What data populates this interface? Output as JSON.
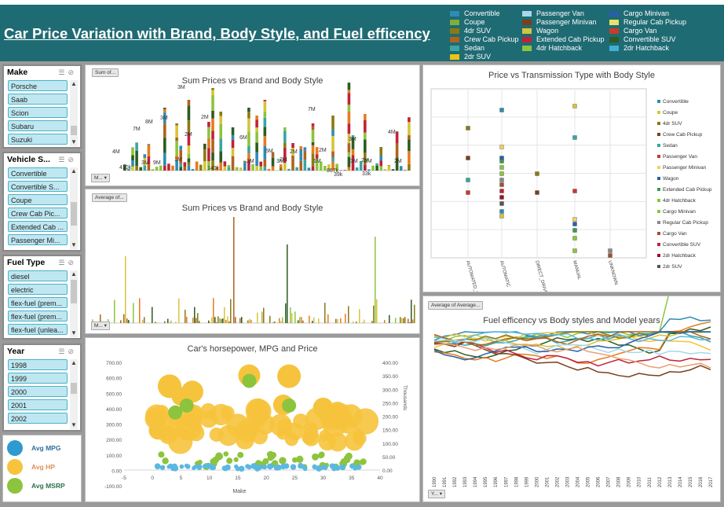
{
  "header": {
    "title": "Car Price Variation with Brand, Body Style, and Fuel efficency",
    "legend": [
      {
        "label": "Convertible",
        "color": "#2e8bb5"
      },
      {
        "label": "Coupe",
        "color": "#7fae3c"
      },
      {
        "label": "4dr SUV",
        "color": "#8a7a14"
      },
      {
        "label": "Crew Cab Pickup",
        "color": "#b0621e"
      },
      {
        "label": "Sedan",
        "color": "#3aa5a3"
      },
      {
        "label": "2dr SUV",
        "color": "#e8c515"
      },
      {
        "label": "Passenger Van",
        "color": "#a6d8e8"
      },
      {
        "label": "Passenger Minivan",
        "color": "#7a3f1c"
      },
      {
        "label": "Wagon",
        "color": "#d6c43a"
      },
      {
        "label": "Extended Cab Pickup",
        "color": "#c0223b"
      },
      {
        "label": "4dr Hatchback",
        "color": "#8cc43e"
      },
      {
        "label": "Cargo Minivan",
        "color": "#2a5fa8"
      },
      {
        "label": "Regular Cab Pickup",
        "color": "#e8e06a"
      },
      {
        "label": "Cargo Van",
        "color": "#c83a2a"
      },
      {
        "label": "Convertible SUV",
        "color": "#2c5c22"
      },
      {
        "label": "2dr Hatchback",
        "color": "#3fb0d8"
      }
    ]
  },
  "slicers": {
    "make": {
      "title": "Make",
      "items": [
        "Porsche",
        "Saab",
        "Scion",
        "Subaru",
        "Suzuki"
      ]
    },
    "vehicle": {
      "title": "Vehicle S...",
      "items": [
        "Convertible",
        "Convertible S...",
        "Coupe",
        "Crew Cab Pic...",
        "Extended Cab ...",
        "Passenger Mi..."
      ]
    },
    "fuel": {
      "title": "Fuel Type",
      "items": [
        "diesel",
        "electric",
        "flex-fuel (prem...",
        "flex-fuel (prem...",
        "flex-fuel (unlea..."
      ]
    },
    "year": {
      "title": "Year",
      "items": [
        "1998",
        "1999",
        "2000",
        "2001",
        "2002"
      ]
    }
  },
  "avg_legend": [
    {
      "label": "Avg MPG",
      "color": "#2e9ad0",
      "text_color": "#2e6f9a"
    },
    {
      "label": "Avg HP",
      "color": "#f6c33c",
      "text_color": "#e08e5a"
    },
    {
      "label": "Avg MSRP",
      "color": "#8cc43e",
      "text_color": "#2e6f4a"
    }
  ],
  "buttons": {
    "sum_of": "Sum of...",
    "average_of": "Average of...",
    "m1": "M...",
    "m2": "M...",
    "average_of_average": "Average of Average...",
    "y": "Y..."
  },
  "chart1": {
    "title": "Sum Prices vs Brand and Body Style",
    "labels": [
      "4M",
      "410k",
      "7M",
      "3M",
      "8M",
      "9M",
      "3M",
      "3M",
      "1M",
      "2M",
      "140k",
      "2M",
      "6M",
      "2M",
      "5M",
      "3M",
      "7M",
      "2M",
      "2M",
      "2M",
      "1M",
      "867k",
      "39k",
      "3M",
      "2M",
      "4M",
      "3M",
      "2M",
      "33k",
      "2M"
    ]
  },
  "chart2": {
    "title": "Sum Prices vs Brand and Body Style"
  },
  "chart3": {
    "title": "Car's horsepower, MPG and Price",
    "xlabel": "Make",
    "ylabel_right": "Thousands",
    "y_left_ticks": [
      "700.00",
      "600.00",
      "500.00",
      "400.00",
      "300.00",
      "200.00",
      "100.00",
      "0.00",
      "-100.00"
    ],
    "y_right_ticks": [
      "400.00",
      "350.00",
      "300.00",
      "250.00",
      "200.00",
      "150.00",
      "100.00",
      "50.00",
      "0.00"
    ],
    "x_ticks": [
      "-5",
      "0",
      "5",
      "10",
      "15",
      "20",
      "25",
      "30",
      "35",
      "40"
    ]
  },
  "chart4": {
    "title": "Price vs Transmission Type with Body Style",
    "categories": [
      "AUTOMATED_M ANUAL",
      "AUTOMATIC",
      "DIRECT_DRIVE",
      "MANUAL",
      "UNKNOWN"
    ],
    "legend": [
      "Convertible",
      "Coupe",
      "4dr SUV",
      "Crew Cab Pickup",
      "Sedan",
      "Passenger Van",
      "Passenger Minivan",
      "Wagon",
      "Extended Cab Pickup",
      "4dr Hatchback",
      "Cargo Minivan",
      "Regular Cab Pickup",
      "Cargo Van",
      "Convertible SUV",
      "2dr Hatchback",
      "2dr SUV"
    ]
  },
  "chart5": {
    "title": "Fuel efficency vs Body styles and Model years",
    "years": [
      "1990",
      "1991",
      "1992",
      "1993",
      "1994",
      "1995",
      "1996",
      "1997",
      "1998",
      "1999",
      "2000",
      "2001",
      "2002",
      "2003",
      "2004",
      "2005",
      "2006",
      "2007",
      "2008",
      "2009",
      "2010",
      "2011",
      "2012",
      "2013",
      "2014",
      "2015",
      "2016",
      "2017"
    ]
  }
}
